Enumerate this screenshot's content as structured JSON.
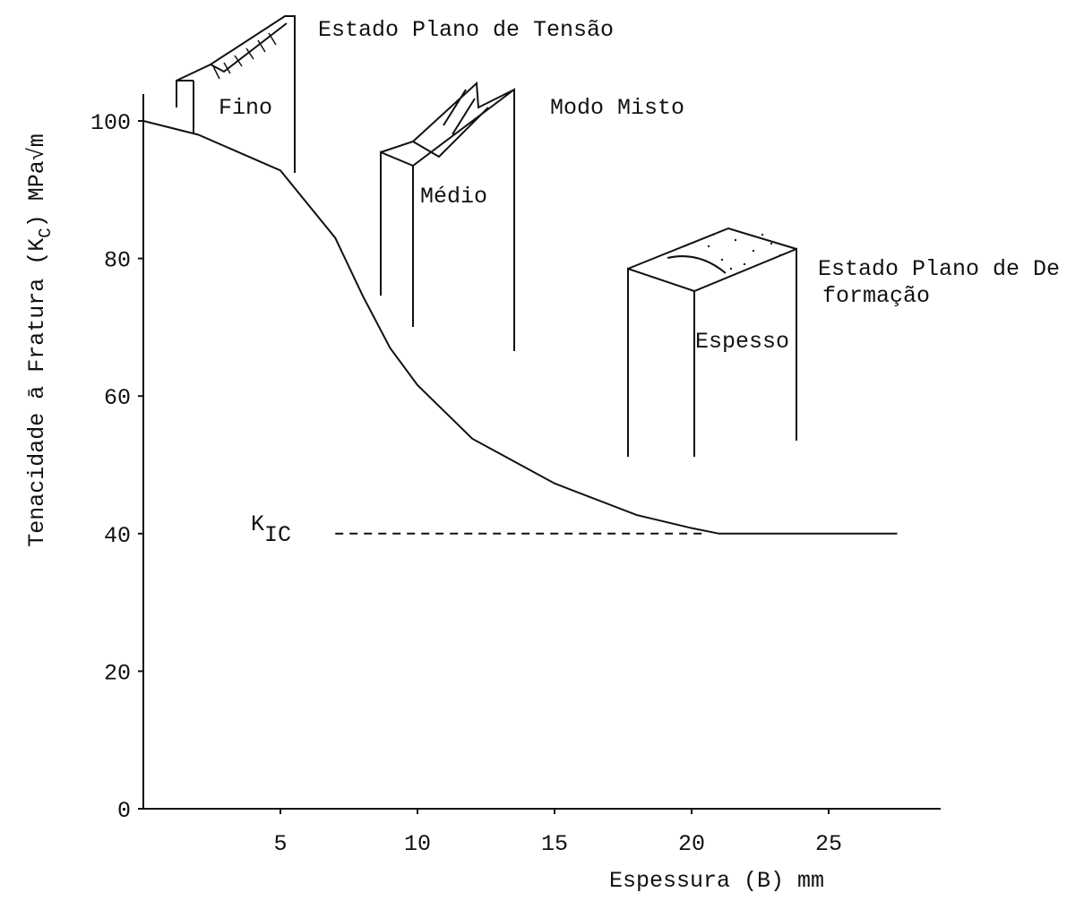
{
  "chart_data": {
    "type": "line",
    "ylabel": [
      "Tenacidade ā Fratura (K",
      "C",
      ") MPa√m"
    ],
    "xlabel": "Espessura (B) mm",
    "xlim": [
      0,
      29
    ],
    "xticks": [
      5,
      10,
      15,
      20,
      25
    ],
    "ylim": [
      0,
      104
    ],
    "yticks": [
      0,
      20,
      40,
      60,
      80,
      100
    ],
    "series": [
      {
        "color": "#111111",
        "x": [
          0,
          2,
          5,
          7,
          8,
          9,
          10,
          12,
          15,
          18,
          20,
          21,
          27.5
        ],
        "values": [
          100,
          98,
          92.8,
          83,
          74.6,
          67,
          61.6,
          53.8,
          47.3,
          42.7,
          40.8,
          40,
          40
        ]
      },
      {
        "color": "#111111",
        "dashed": true,
        "x": [
          7,
          20.5
        ],
        "values": [
          40,
          40
        ]
      }
    ],
    "annotations": [
      [
        "Estado Plano de Tensão"
      ],
      [
        "Fino"
      ],
      [
        "Modo Misto"
      ],
      [
        "Médio"
      ],
      [
        "Estado Plano de De",
        "formação"
      ],
      [
        "Espesso"
      ]
    ],
    "kic": [
      "K",
      "IC"
    ]
  }
}
